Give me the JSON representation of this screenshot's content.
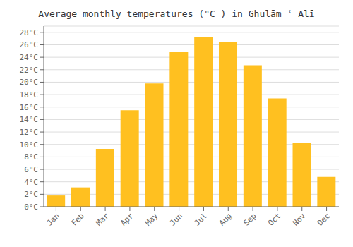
{
  "chart_data": {
    "type": "bar",
    "title": "Average monthly temperatures (°C ) in Ghulām ʿ Alī",
    "categories": [
      "Jan",
      "Feb",
      "Mar",
      "Apr",
      "May",
      "Jun",
      "Jul",
      "Aug",
      "Sep",
      "Oct",
      "Nov",
      "Dec"
    ],
    "values": [
      1.8,
      3.1,
      9.3,
      15.5,
      19.8,
      24.9,
      27.2,
      26.5,
      22.7,
      17.4,
      10.3,
      4.8
    ],
    "color": "#FFC020",
    "ylim": [
      0,
      29
    ],
    "yticks": [
      {
        "value": 0,
        "label": "0°C"
      },
      {
        "value": 2,
        "label": "2°C"
      },
      {
        "value": 4,
        "label": "4°C"
      },
      {
        "value": 6,
        "label": "6°C"
      },
      {
        "value": 8,
        "label": "8°C"
      },
      {
        "value": 10,
        "label": "10°C"
      },
      {
        "value": 12,
        "label": "12°C"
      },
      {
        "value": 14,
        "label": "14°C"
      },
      {
        "value": 16,
        "label": "16°C"
      },
      {
        "value": 18,
        "label": "18°C"
      },
      {
        "value": 20,
        "label": "20°C"
      },
      {
        "value": 22,
        "label": "22°C"
      },
      {
        "value": 24,
        "label": "24°C"
      },
      {
        "value": 26,
        "label": "26°C"
      },
      {
        "value": 28,
        "label": "28°C"
      }
    ],
    "grid": true
  }
}
